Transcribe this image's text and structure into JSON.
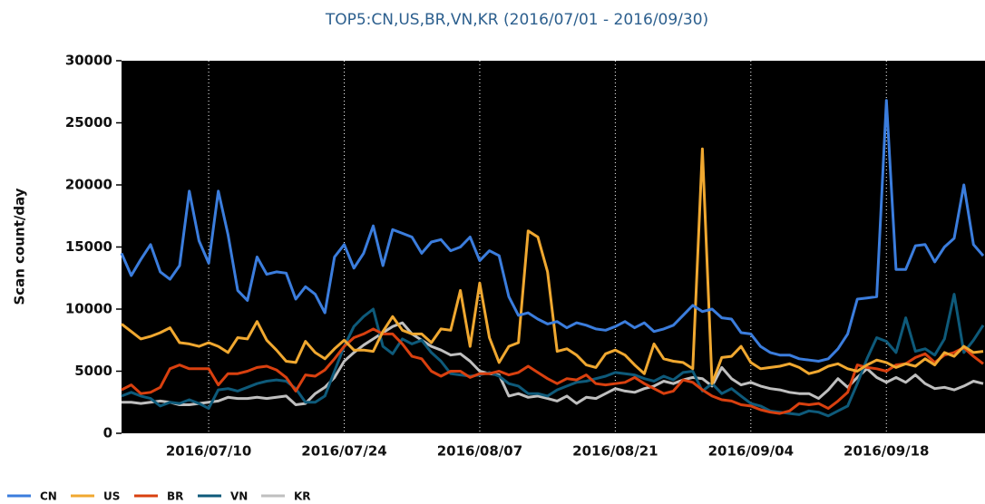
{
  "chart_data": {
    "type": "line",
    "title": "TOP5:CN,US,BR,VN,KR (2016/07/01 - 2016/09/30)",
    "y_label": "Scan count/day",
    "x": [
      "2016/07/01",
      "2016/07/02",
      "2016/07/03",
      "2016/07/04",
      "2016/07/05",
      "2016/07/06",
      "2016/07/07",
      "2016/07/08",
      "2016/07/09",
      "2016/07/10",
      "2016/07/11",
      "2016/07/12",
      "2016/07/13",
      "2016/07/14",
      "2016/07/15",
      "2016/07/16",
      "2016/07/17",
      "2016/07/18",
      "2016/07/19",
      "2016/07/20",
      "2016/07/21",
      "2016/07/22",
      "2016/07/23",
      "2016/07/24",
      "2016/07/25",
      "2016/07/26",
      "2016/07/27",
      "2016/07/28",
      "2016/07/29",
      "2016/07/30",
      "2016/07/31",
      "2016/08/01",
      "2016/08/02",
      "2016/08/03",
      "2016/08/04",
      "2016/08/05",
      "2016/08/06",
      "2016/08/07",
      "2016/08/08",
      "2016/08/09",
      "2016/08/10",
      "2016/08/11",
      "2016/08/12",
      "2016/08/13",
      "2016/08/14",
      "2016/08/15",
      "2016/08/16",
      "2016/08/17",
      "2016/08/18",
      "2016/08/19",
      "2016/08/20",
      "2016/08/21",
      "2016/08/22",
      "2016/08/23",
      "2016/08/24",
      "2016/08/25",
      "2016/08/26",
      "2016/08/27",
      "2016/08/28",
      "2016/08/29",
      "2016/08/30",
      "2016/08/31",
      "2016/09/01",
      "2016/09/02",
      "2016/09/03",
      "2016/09/04",
      "2016/09/05",
      "2016/09/06",
      "2016/09/07",
      "2016/09/08",
      "2016/09/09",
      "2016/09/10",
      "2016/09/11",
      "2016/09/12",
      "2016/09/13",
      "2016/09/14",
      "2016/09/15",
      "2016/09/16",
      "2016/09/17",
      "2016/09/18",
      "2016/09/19",
      "2016/09/20",
      "2016/09/21",
      "2016/09/22",
      "2016/09/23",
      "2016/09/24",
      "2016/09/25",
      "2016/09/26",
      "2016/09/27",
      "2016/09/28"
    ],
    "xlim": [
      "2016/07/01",
      "2016/09/28"
    ],
    "xticks": [
      "2016/07/10",
      "2016/07/24",
      "2016/08/07",
      "2016/08/21",
      "2016/09/04",
      "2016/09/18"
    ],
    "ylim": [
      0,
      30000
    ],
    "yticks": [
      0,
      5000,
      10000,
      15000,
      20000,
      25000,
      30000
    ],
    "xgrid": true,
    "series": [
      {
        "name": "CN",
        "color": "#3b7ddd",
        "values": [
          14500,
          12700,
          14000,
          15200,
          13000,
          12400,
          13500,
          19500,
          15500,
          13700,
          19500,
          16000,
          11500,
          10700,
          14200,
          12800,
          13000,
          12900,
          10800,
          11800,
          11200,
          9700,
          14200,
          15200,
          13300,
          14500,
          16700,
          13500,
          16400,
          16100,
          15800,
          14500,
          15400,
          15600,
          14700,
          15000,
          15800,
          13900,
          14700,
          14300,
          11000,
          9500,
          9700,
          9200,
          8800,
          9000,
          8500,
          8900,
          8700,
          8400,
          8300,
          8600,
          9000,
          8500,
          8900,
          8200,
          8400,
          8700,
          9500,
          10300,
          9800,
          10000,
          9300,
          9200,
          8100,
          8000,
          7000,
          6500,
          6300,
          6300,
          6000,
          5900,
          5800,
          6000,
          6800,
          8000,
          10800,
          10900,
          11000,
          26800,
          13200,
          13200,
          15100,
          15200,
          13800,
          15000,
          15700,
          20000,
          15200,
          14300
        ]
      },
      {
        "name": "US",
        "color": "#f0a830",
        "values": [
          8800,
          8200,
          7600,
          7800,
          8100,
          8500,
          7300,
          7200,
          7000,
          7300,
          7000,
          6500,
          7700,
          7600,
          9000,
          7500,
          6700,
          5800,
          5700,
          7400,
          6500,
          6000,
          6800,
          7500,
          6700,
          6700,
          6600,
          8200,
          9400,
          8300,
          8000,
          8000,
          7300,
          8400,
          8300,
          11500,
          7000,
          12100,
          7700,
          5700,
          7000,
          7300,
          16300,
          15800,
          13000,
          6600,
          6800,
          6300,
          5500,
          5300,
          6400,
          6700,
          6300,
          5500,
          4800,
          7200,
          6000,
          5800,
          5700,
          5200,
          22900,
          4000,
          6100,
          6200,
          7000,
          5700,
          5200,
          5300,
          5400,
          5600,
          5300,
          4800,
          5000,
          5400,
          5600,
          5200,
          5000,
          5500,
          5900,
          5700,
          5300,
          5600,
          5400,
          6000,
          5500,
          6500,
          6200,
          7000,
          6500,
          6600
        ]
      },
      {
        "name": "BR",
        "color": "#d9400f",
        "values": [
          3500,
          3900,
          3200,
          3300,
          3700,
          5200,
          5500,
          5200,
          5200,
          5200,
          3900,
          4800,
          4800,
          5000,
          5300,
          5400,
          5100,
          4500,
          3400,
          4700,
          4600,
          5100,
          6000,
          7000,
          7700,
          8000,
          8400,
          8000,
          8000,
          7200,
          6200,
          6000,
          5000,
          4600,
          5000,
          5000,
          4500,
          4800,
          4800,
          5000,
          4700,
          4900,
          5400,
          4900,
          4400,
          4000,
          4400,
          4300,
          4700,
          4000,
          3900,
          4000,
          4100,
          4500,
          4000,
          3600,
          3200,
          3400,
          4300,
          4100,
          3500,
          3000,
          2700,
          2600,
          2300,
          2200,
          1900,
          1700,
          1600,
          1800,
          2400,
          2300,
          2400,
          2000,
          2600,
          3300,
          5500,
          5300,
          5200,
          5000,
          5500,
          5600,
          6100,
          6400,
          5700,
          6300,
          6500,
          6900,
          6200,
          5600
        ]
      },
      {
        "name": "VN",
        "color": "#0e5a7a",
        "values": [
          3000,
          3300,
          3000,
          2800,
          2200,
          2500,
          2400,
          2700,
          2400,
          2000,
          3500,
          3600,
          3400,
          3700,
          4000,
          4200,
          4300,
          4200,
          3600,
          2500,
          2500,
          3000,
          5000,
          7000,
          8600,
          9400,
          10000,
          7000,
          6400,
          7600,
          7200,
          7500,
          6500,
          5800,
          4800,
          4700,
          4600,
          4700,
          4900,
          4600,
          4000,
          3800,
          3200,
          3200,
          3000,
          3500,
          3800,
          4100,
          4200,
          4400,
          4600,
          4900,
          4800,
          4700,
          4400,
          4200,
          4600,
          4300,
          4900,
          5000,
          3400,
          4000,
          3200,
          3600,
          3000,
          2400,
          2200,
          1800,
          1700,
          1600,
          1500,
          1800,
          1700,
          1400,
          1800,
          2200,
          4000,
          6000,
          7700,
          7400,
          6500,
          9300,
          6600,
          6800,
          6300,
          7600,
          11200,
          6500,
          7500,
          8700
        ]
      },
      {
        "name": "KR",
        "color": "#bfbfbf",
        "values": [
          2500,
          2500,
          2400,
          2500,
          2600,
          2500,
          2300,
          2300,
          2400,
          2500,
          2600,
          2900,
          2800,
          2800,
          2900,
          2800,
          2900,
          3000,
          2300,
          2400,
          3200,
          3700,
          4500,
          5800,
          6500,
          7100,
          7600,
          8100,
          8600,
          8900,
          8000,
          7500,
          7000,
          6700,
          6300,
          6400,
          5800,
          5000,
          4800,
          4700,
          3000,
          3200,
          2900,
          3000,
          2800,
          2600,
          3000,
          2400,
          2900,
          2800,
          3200,
          3600,
          3400,
          3300,
          3600,
          3800,
          4200,
          4000,
          4300,
          4500,
          4400,
          3800,
          5300,
          4400,
          3900,
          4100,
          3800,
          3600,
          3500,
          3300,
          3200,
          3200,
          2800,
          3500,
          4400,
          3700,
          4500,
          5200,
          4500,
          4100,
          4500,
          4100,
          4700,
          4000,
          3600,
          3700,
          3500,
          3800,
          4200,
          4000
        ]
      }
    ]
  }
}
